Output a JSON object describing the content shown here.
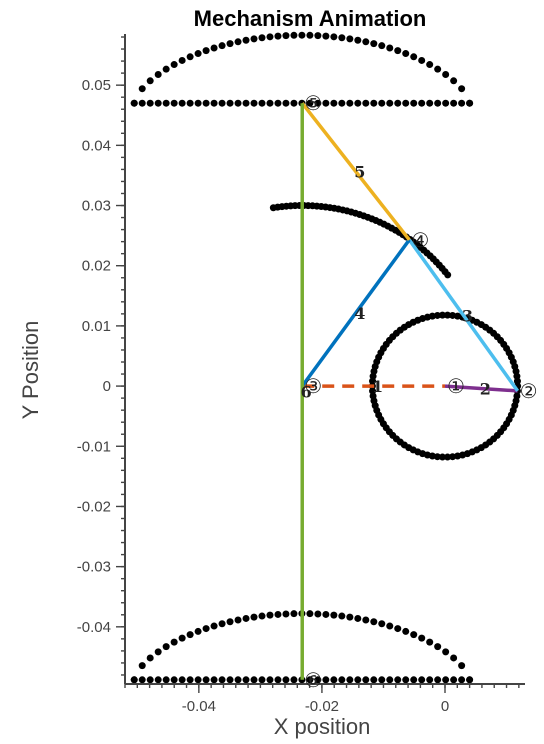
{
  "chart_data": {
    "type": "scatter",
    "title": "Mechanism Animation",
    "xlabel": "X position",
    "ylabel": "Y Position",
    "xlim": [
      -0.052,
      0.013
    ],
    "ylim": [
      -0.0495,
      0.0585
    ],
    "xticks": [
      -0.04,
      -0.02,
      0
    ],
    "xtick_labels": [
      "-0.04",
      "-0.02",
      "0"
    ],
    "yticks": [
      -0.04,
      -0.03,
      -0.02,
      -0.01,
      0,
      0.01,
      0.02,
      0.03,
      0.04,
      0.05
    ],
    "ytick_labels": [
      "-0.04",
      "-0.03",
      "-0.02",
      "-0.01",
      "0",
      "0.01",
      "0.02",
      "0.03",
      "0.04",
      "0.05"
    ],
    "minor_tick_step": 0.002,
    "trajectory_color": "#000000",
    "joints": [
      {
        "id": "1",
        "label": "①",
        "x": 0.0,
        "y": 0.0
      },
      {
        "id": "2",
        "label": "②",
        "x": 0.0118,
        "y": -0.0008
      },
      {
        "id": "3",
        "label": "③",
        "x": -0.0232,
        "y": 0.0
      },
      {
        "id": "4",
        "label": "④",
        "x": -0.0058,
        "y": 0.0243
      },
      {
        "id": "5",
        "label": "⑤",
        "x": -0.0232,
        "y": 0.047
      },
      {
        "id": "6",
        "label": "⑥",
        "x": -0.0232,
        "y": -0.0488
      }
    ],
    "links": [
      {
        "label": "1",
        "from": "3",
        "to": "1",
        "color": "#d95319",
        "dashed": true
      },
      {
        "label": "2",
        "from": "1",
        "to": "2",
        "color": "#7e2f8e",
        "dashed": false
      },
      {
        "label": "3",
        "from": "4",
        "to": "2",
        "color": "#4dbeee",
        "dashed": false
      },
      {
        "label": "4",
        "from": "3",
        "to": "4",
        "color": "#0072bd",
        "dashed": false
      },
      {
        "label": "5",
        "from": "5",
        "to": "4",
        "color": "#edb120",
        "dashed": false
      },
      {
        "label": "6",
        "from": "6",
        "to": "5",
        "color": "#77ac30",
        "dashed": false
      }
    ],
    "paths": [
      {
        "shape": "circle",
        "cx": 0.0,
        "cy": 0.0,
        "r": 0.0118,
        "points": 90
      },
      {
        "shape": "arc",
        "cx": -0.0232,
        "cy": 0.0,
        "r": 0.03,
        "start_deg": 99,
        "end_deg": 38,
        "points": 45
      },
      {
        "shape": "loop",
        "x_left": -0.0505,
        "x_right": 0.004,
        "y_base": 0.047,
        "y_peak": 0.0583,
        "points": 84
      },
      {
        "shape": "loop",
        "x_left": -0.0505,
        "x_right": 0.004,
        "y_base": -0.0488,
        "y_peak": -0.0378,
        "points": 84
      }
    ]
  }
}
